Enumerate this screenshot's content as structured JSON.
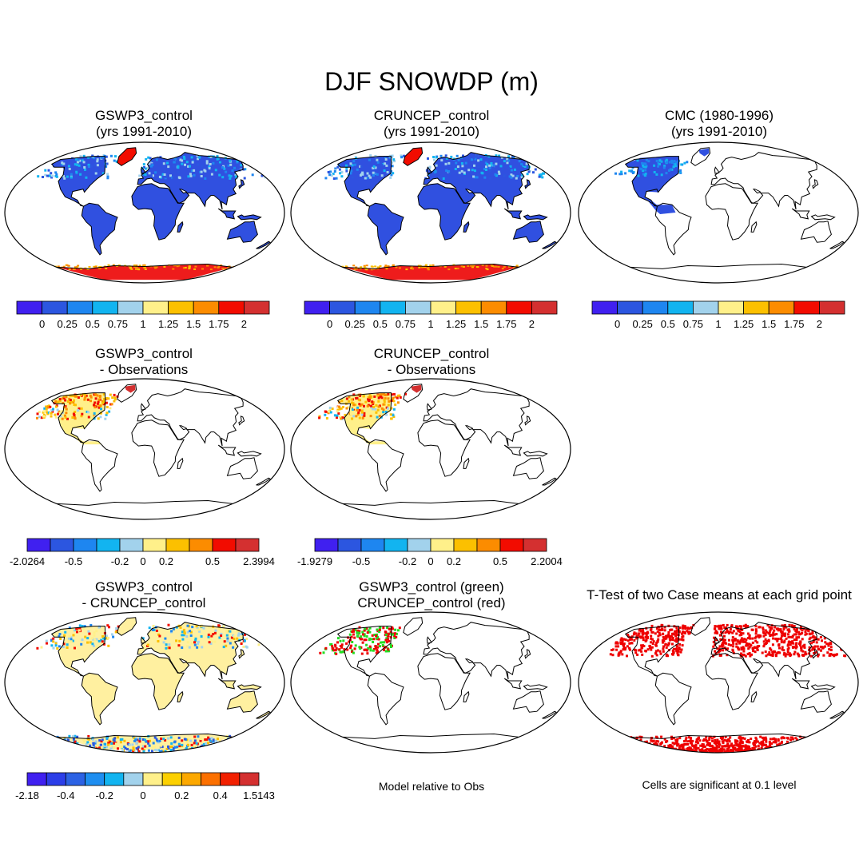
{
  "title": "DJF SNOWDP (m)",
  "colors": {
    "ramp": [
      "#4020f0",
      "#2c56e0",
      "#1e86f0",
      "#12b4f0",
      "#a2d2ec",
      "#fff08a",
      "#fcc000",
      "#fc8c00",
      "#f20c00",
      "#d43030"
    ],
    "ramp12": [
      "#4020f0",
      "#2c3ee8",
      "#2c62e4",
      "#1e8ef0",
      "#12b4f0",
      "#a2d2ec",
      "#fff08a",
      "#fcd000",
      "#fca800",
      "#fc7000",
      "#f22000",
      "#d43030"
    ],
    "land_blue": "#3050e0",
    "land_cream": "#fff0a0",
    "antarctic_red": "#ee1c1c",
    "green": "#22dd22",
    "red": "#ee0000"
  },
  "panels": [
    {
      "line1": "GSWP3_control",
      "line2": "(yrs 1991-2010)",
      "style": "full_blue"
    },
    {
      "line1": "CRUNCEP_control",
      "line2": "(yrs 1991-2010)",
      "style": "full_blue"
    },
    {
      "line1": "CMC (1980-1996)",
      "line2": "(yrs 1991-2010)",
      "style": "cmc"
    },
    {
      "line1": "GSWP3_control",
      "line2": "- Observations",
      "style": "diff_obs"
    },
    {
      "line1": "CRUNCEP_control",
      "line2": "- Observations",
      "style": "diff_obs"
    },
    {
      "line1": "GSWP3_control",
      "line2": "- CRUNCEP_control",
      "style": "diff_case"
    },
    {
      "line1": "GSWP3_control (green)",
      "line2": "CRUNCEP_control (red)",
      "style": "green_red"
    },
    {
      "line1": "T-Test of two Case means at each grid point",
      "line2": "",
      "style": "ttest"
    }
  ],
  "colorbars": [
    {
      "labels": [
        "0",
        "0.25",
        "0.5",
        "0.75",
        "1",
        "1.25",
        "1.5",
        "1.75",
        "2"
      ]
    },
    {
      "labels": [
        "0",
        "0.25",
        "0.5",
        "0.75",
        "1",
        "1.25",
        "1.5",
        "1.75",
        "2"
      ]
    },
    {
      "labels": [
        "0",
        "0.25",
        "0.5",
        "0.75",
        "1",
        "1.25",
        "1.5",
        "1.75",
        "2"
      ]
    },
    {
      "labels": [
        "-2.0264",
        "-0.5",
        "-0.2",
        "0",
        "0.2",
        "0.5",
        "2.3994"
      ]
    },
    {
      "labels": [
        "-1.9279",
        "-0.5",
        "-0.2",
        "0",
        "0.2",
        "0.5",
        "2.2004"
      ]
    },
    {
      "labels": [
        "-2.18",
        "-0.4",
        "-0.2",
        "0",
        "0.2",
        "0.4",
        "1.5143"
      ]
    }
  ],
  "notes": {
    "model_relative": "Model relative to Obs",
    "significance": "Cells are significant at 0.1 level"
  }
}
